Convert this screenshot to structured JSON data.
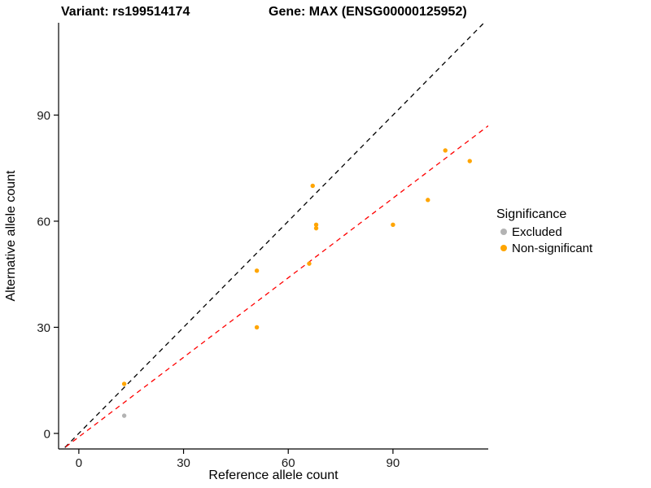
{
  "header": {
    "variant_title": "Variant: rs199514174",
    "gene_title": "Gene: MAX (ENSG00000125952)"
  },
  "chart_data": {
    "type": "scatter",
    "title": "Variant: rs199514174 | Gene: MAX (ENSG00000125952)",
    "xlabel": "Reference allele count",
    "ylabel": "Alternative allele count",
    "xlim": [
      -5.8,
      117.3
    ],
    "ylim": [
      -4.4,
      116.1
    ],
    "x_ticks": [
      0,
      30,
      60,
      90
    ],
    "y_ticks": [
      0,
      30,
      60,
      90
    ],
    "grid": false,
    "series": [
      {
        "name": "Excluded",
        "color": "#b3b3b3",
        "points": [
          [
            13,
            5
          ]
        ]
      },
      {
        "name": "Non-significant",
        "color": "#ffa500",
        "points": [
          [
            13,
            14
          ],
          [
            51,
            30
          ],
          [
            51,
            46
          ],
          [
            66,
            48
          ],
          [
            67,
            70
          ],
          [
            68,
            58
          ],
          [
            68,
            59
          ],
          [
            90,
            59
          ],
          [
            100,
            66
          ],
          [
            105,
            80
          ],
          [
            112,
            77
          ]
        ]
      }
    ],
    "lines": [
      {
        "name": "identity-line",
        "slope": 1,
        "intercept": 0,
        "color": "#000000",
        "dash": "6,5"
      },
      {
        "name": "fit-line",
        "slope": 0.75,
        "intercept": -1,
        "color": "#ff0000",
        "dash": "6,5"
      }
    ],
    "legend": {
      "title": "Significance",
      "position": "right",
      "items": [
        {
          "label": "Excluded",
          "color": "#b3b3b3"
        },
        {
          "label": "Non-significant",
          "color": "#ffa500"
        }
      ]
    }
  }
}
